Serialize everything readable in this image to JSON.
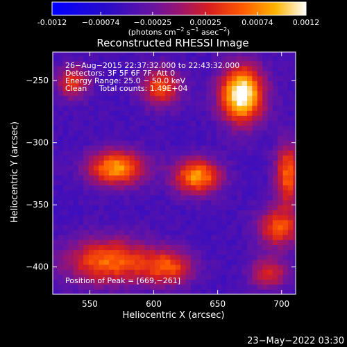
{
  "chart_data": {
    "type": "heatmap",
    "title": "Reconstructed RHESSI Image",
    "xlabel": "Heliocentric X (arcsec)",
    "ylabel": "Heliocentric Y (arcsec)",
    "xlim": [
      521,
      711
    ],
    "ylim": [
      -422,
      -227
    ],
    "x_ticks": [
      550,
      600,
      650,
      700
    ],
    "y_ticks": [
      -250,
      -300,
      -350,
      -400
    ],
    "colorbar": {
      "min": -0.0012,
      "max": 0.0012,
      "ticks": [
        "-0.0012",
        "−0.00074",
        "−0.00025",
        "0.00025",
        "0.00074",
        "0.0012"
      ],
      "tick_values": [
        -0.0012,
        -0.00074,
        -0.00025,
        0.00025,
        0.00074,
        0.0012
      ],
      "label_prefix": "(photons cm",
      "label_sup1": "−2",
      "label_mid": " s",
      "label_sup2": "−1",
      "label_mid2": " asec",
      "label_sup3": "−2",
      "label_suffix": ")"
    },
    "annotations": [
      "26−Aug−2015 22:37:32.000 to 22:43:32.000",
      "Detectors: 3F 5F 6F 7F, Att 0",
      "Energy Range: 25.0 − 50.0 keV",
      "Clean     Total counts: 1.49E+04"
    ],
    "peak_label": "Position of Peak = [669,−261]",
    "peak": [
      669,
      -261
    ],
    "sources": [
      {
        "x": 669,
        "y": -261,
        "amp": 1.0,
        "sx": 12,
        "sy": 16
      },
      {
        "x": 606,
        "y": -255,
        "amp": 0.55,
        "sx": 11,
        "sy": 11
      },
      {
        "x": 537,
        "y": -251,
        "amp": 0.5,
        "sx": 9,
        "sy": 9
      },
      {
        "x": 571,
        "y": -320,
        "amp": 0.72,
        "sx": 16,
        "sy": 10
      },
      {
        "x": 634,
        "y": -327,
        "amp": 0.72,
        "sx": 13,
        "sy": 10
      },
      {
        "x": 705,
        "y": -325,
        "amp": 0.6,
        "sx": 7,
        "sy": 18
      },
      {
        "x": 565,
        "y": -395,
        "amp": 0.62,
        "sx": 24,
        "sy": 13
      },
      {
        "x": 612,
        "y": -400,
        "amp": 0.5,
        "sx": 14,
        "sy": 10
      },
      {
        "x": 698,
        "y": -368,
        "amp": 0.55,
        "sx": 12,
        "sy": 11
      },
      {
        "x": 690,
        "y": -405,
        "amp": 0.45,
        "sx": 10,
        "sy": 9
      }
    ]
  },
  "footer": {
    "timestamp": "23−May−2022 03:30"
  }
}
